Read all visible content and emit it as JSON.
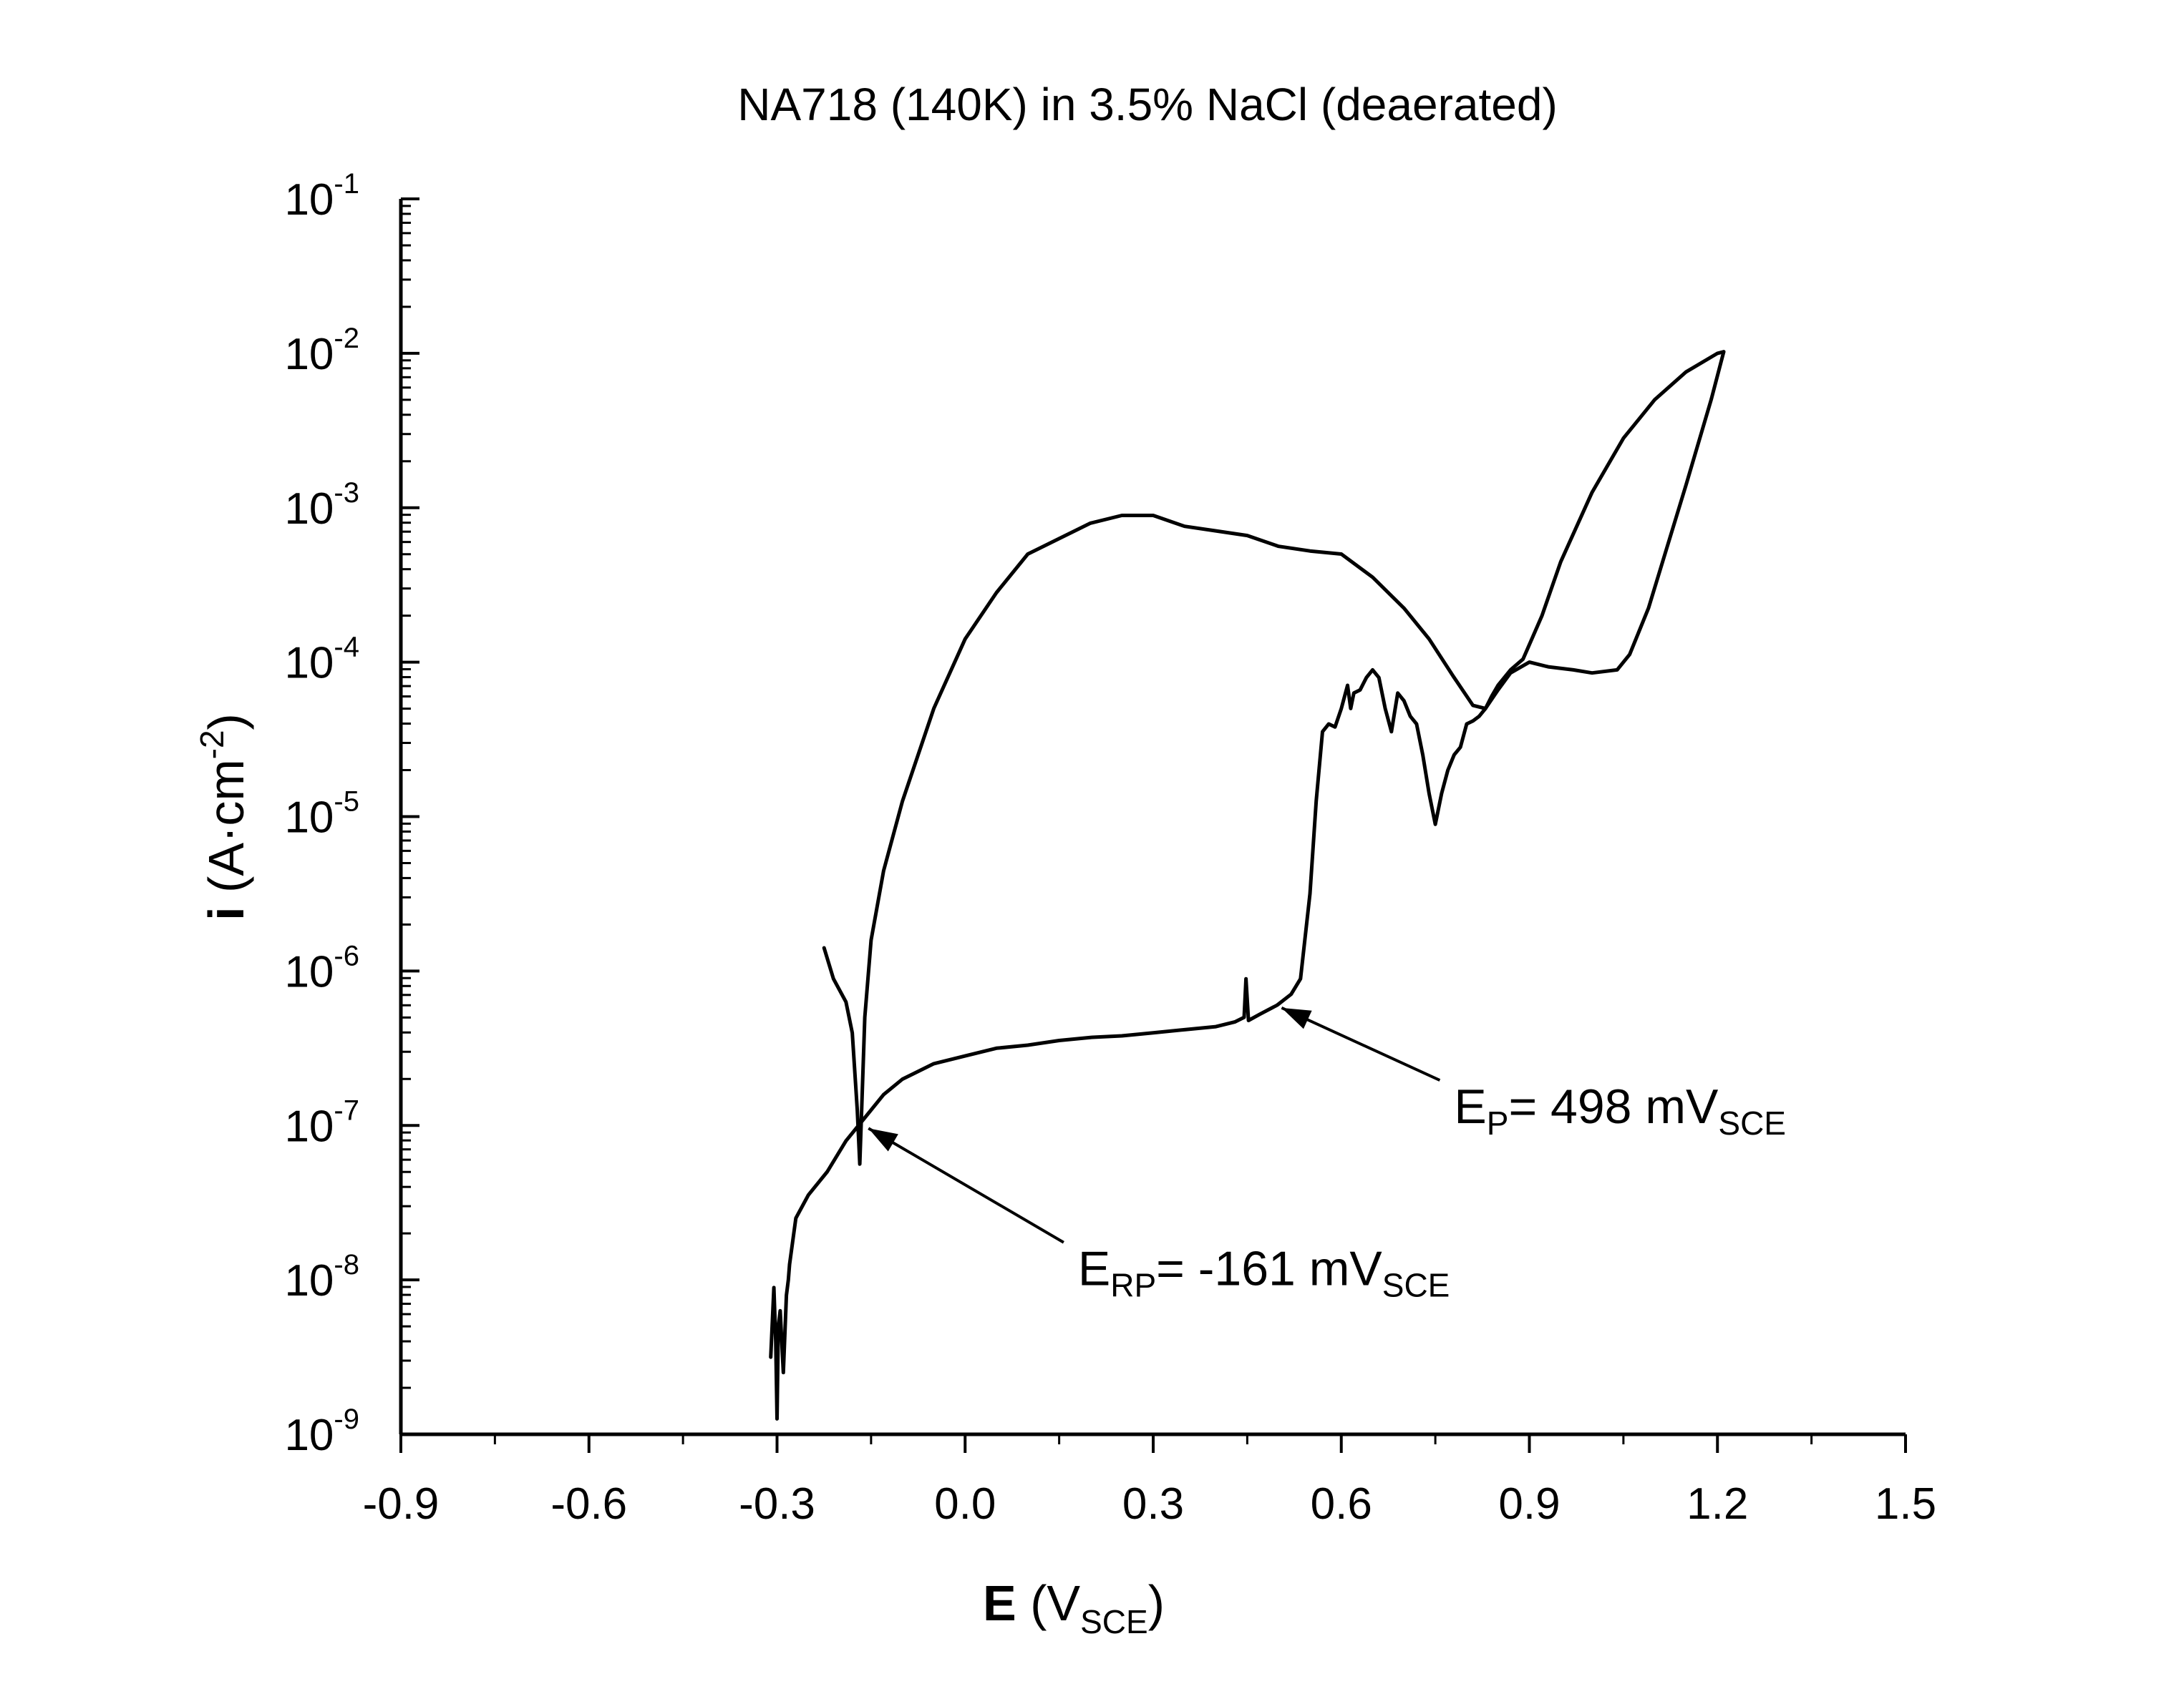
{
  "chart_data": {
    "type": "line",
    "title": "NA718 (140K) in 3.5% NaCl (deaerated)",
    "xlabel": {
      "main": "E",
      "open": " (V",
      "sub": "SCE",
      "close": ")"
    },
    "ylabel": {
      "main": "i",
      "open": " (A·cm",
      "sup": "-2",
      "close": ")"
    },
    "xlim": [
      -0.9,
      1.5
    ],
    "ylim_exp": [
      -9,
      -1
    ],
    "yscale": "log",
    "x_ticks": [
      {
        "value": -0.9,
        "label": "-0.9"
      },
      {
        "value": -0.6,
        "label": "-0.6"
      },
      {
        "value": -0.3,
        "label": "-0.3"
      },
      {
        "value": 0.0,
        "label": "0.0"
      },
      {
        "value": 0.3,
        "label": "0.3"
      },
      {
        "value": 0.6,
        "label": "0.6"
      },
      {
        "value": 0.9,
        "label": "0.9"
      },
      {
        "value": 1.2,
        "label": "1.2"
      },
      {
        "value": 1.5,
        "label": "1.5"
      }
    ],
    "y_ticks": [
      {
        "exp": -9,
        "base": "10",
        "sup": "-9"
      },
      {
        "exp": -8,
        "base": "10",
        "sup": "-8"
      },
      {
        "exp": -7,
        "base": "10",
        "sup": "-7"
      },
      {
        "exp": -6,
        "base": "10",
        "sup": "-6"
      },
      {
        "exp": -5,
        "base": "10",
        "sup": "-5"
      },
      {
        "exp": -4,
        "base": "10",
        "sup": "-4"
      },
      {
        "exp": -3,
        "base": "10",
        "sup": "-3"
      },
      {
        "exp": -2,
        "base": "10",
        "sup": "-2"
      },
      {
        "exp": -1,
        "base": "10",
        "sup": "-1"
      }
    ],
    "grid": false,
    "legend": "none",
    "series": [
      {
        "forward_scan": [
          [
            -0.31,
            -8.5
          ],
          [
            -0.305,
            -8.05
          ],
          [
            -0.302,
            -8.4
          ],
          [
            -0.3,
            -8.9
          ],
          [
            -0.298,
            -8.3
          ],
          [
            -0.295,
            -8.2
          ],
          [
            -0.29,
            -8.6
          ],
          [
            -0.285,
            -8.1
          ],
          [
            -0.282,
            -8.0
          ],
          [
            -0.28,
            -7.9
          ],
          [
            -0.27,
            -7.6
          ],
          [
            -0.25,
            -7.45
          ],
          [
            -0.22,
            -7.3
          ],
          [
            -0.19,
            -7.1
          ],
          [
            -0.16,
            -6.95
          ],
          [
            -0.13,
            -6.8
          ],
          [
            -0.1,
            -6.7
          ],
          [
            -0.05,
            -6.6
          ],
          [
            0.0,
            -6.55
          ],
          [
            0.05,
            -6.5
          ],
          [
            0.1,
            -6.48
          ],
          [
            0.15,
            -6.45
          ],
          [
            0.2,
            -6.43
          ],
          [
            0.25,
            -6.42
          ],
          [
            0.3,
            -6.4
          ],
          [
            0.35,
            -6.38
          ],
          [
            0.4,
            -6.36
          ],
          [
            0.43,
            -6.33
          ],
          [
            0.445,
            -6.3
          ],
          [
            0.448,
            -6.05
          ],
          [
            0.452,
            -6.32
          ],
          [
            0.47,
            -6.28
          ],
          [
            0.498,
            -6.22
          ],
          [
            0.52,
            -6.15
          ],
          [
            0.535,
            -6.05
          ],
          [
            0.55,
            -5.5
          ],
          [
            0.56,
            -4.9
          ],
          [
            0.57,
            -4.45
          ],
          [
            0.58,
            -4.4
          ],
          [
            0.59,
            -4.42
          ],
          [
            0.6,
            -4.3
          ],
          [
            0.61,
            -4.15
          ],
          [
            0.615,
            -4.3
          ],
          [
            0.62,
            -4.2
          ],
          [
            0.63,
            -4.18
          ],
          [
            0.64,
            -4.1
          ],
          [
            0.65,
            -4.05
          ],
          [
            0.66,
            -4.1
          ],
          [
            0.67,
            -4.3
          ],
          [
            0.68,
            -4.45
          ],
          [
            0.69,
            -4.2
          ],
          [
            0.7,
            -4.25
          ],
          [
            0.71,
            -4.35
          ],
          [
            0.72,
            -4.4
          ],
          [
            0.73,
            -4.6
          ],
          [
            0.74,
            -4.85
          ],
          [
            0.75,
            -5.05
          ],
          [
            0.76,
            -4.85
          ],
          [
            0.77,
            -4.7
          ],
          [
            0.78,
            -4.6
          ],
          [
            0.79,
            -4.55
          ],
          [
            0.8,
            -4.4
          ],
          [
            0.81,
            -4.38
          ],
          [
            0.82,
            -4.35
          ],
          [
            0.83,
            -4.3
          ],
          [
            0.84,
            -4.22
          ],
          [
            0.85,
            -4.15
          ],
          [
            0.87,
            -4.05
          ],
          [
            0.89,
            -3.98
          ],
          [
            0.92,
            -3.7
          ],
          [
            0.95,
            -3.35
          ],
          [
            1.0,
            -2.9
          ],
          [
            1.05,
            -2.55
          ],
          [
            1.1,
            -2.3
          ],
          [
            1.15,
            -2.12
          ],
          [
            1.2,
            -2.0
          ],
          [
            1.21,
            -1.99
          ]
        ]
      },
      {
        "reverse_scan": [
          [
            1.21,
            -1.99
          ],
          [
            1.19,
            -2.3
          ],
          [
            1.15,
            -2.85
          ],
          [
            1.12,
            -3.25
          ],
          [
            1.09,
            -3.65
          ],
          [
            1.06,
            -3.95
          ],
          [
            1.04,
            -4.05
          ],
          [
            1.0,
            -4.07
          ],
          [
            0.97,
            -4.05
          ],
          [
            0.93,
            -4.03
          ],
          [
            0.9,
            -4.0
          ],
          [
            0.87,
            -4.07
          ],
          [
            0.85,
            -4.18
          ],
          [
            0.83,
            -4.3
          ],
          [
            0.81,
            -4.28
          ],
          [
            0.78,
            -4.1
          ],
          [
            0.74,
            -3.85
          ],
          [
            0.7,
            -3.65
          ],
          [
            0.65,
            -3.45
          ],
          [
            0.6,
            -3.3
          ],
          [
            0.55,
            -3.28
          ],
          [
            0.5,
            -3.25
          ],
          [
            0.45,
            -3.18
          ],
          [
            0.4,
            -3.15
          ],
          [
            0.35,
            -3.12
          ],
          [
            0.3,
            -3.05
          ],
          [
            0.25,
            -3.05
          ],
          [
            0.2,
            -3.1
          ],
          [
            0.15,
            -3.2
          ],
          [
            0.1,
            -3.3
          ],
          [
            0.05,
            -3.55
          ],
          [
            0.0,
            -3.85
          ],
          [
            -0.05,
            -4.3
          ],
          [
            -0.1,
            -4.9
          ],
          [
            -0.13,
            -5.35
          ],
          [
            -0.15,
            -5.8
          ],
          [
            -0.16,
            -6.3
          ],
          [
            -0.165,
            -6.9
          ],
          [
            -0.168,
            -7.25
          ],
          [
            -0.172,
            -6.9
          ],
          [
            -0.18,
            -6.4
          ],
          [
            -0.19,
            -6.2
          ],
          [
            -0.21,
            -6.05
          ],
          [
            -0.225,
            -5.85
          ]
        ]
      }
    ],
    "annotations": [
      {
        "main": "E",
        "sub": "P",
        "value": "= 498 mV",
        "unit_sub": "SCE",
        "x": 0.498,
        "y_exp": -6.22,
        "text_x": 0.78,
        "text_y_exp": -6.8
      },
      {
        "main": "E",
        "sub": "RP",
        "value": "= -161 mV",
        "unit_sub": "SCE",
        "x": -0.161,
        "y_exp": -7.0,
        "text_x": 0.18,
        "text_y_exp": -7.85
      }
    ]
  }
}
